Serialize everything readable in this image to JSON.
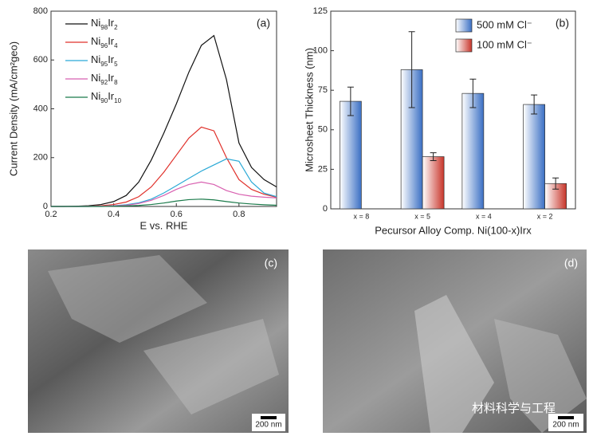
{
  "chart_data": [
    {
      "type": "line",
      "label": "(a)",
      "xlabel": "E vs. RHE",
      "ylabel": "Current Density (mA/cm²geo)",
      "x": [
        0.2,
        0.24,
        0.28,
        0.32,
        0.36,
        0.4,
        0.44,
        0.48,
        0.52,
        0.56,
        0.6,
        0.64,
        0.68,
        0.72,
        0.76,
        0.8,
        0.84,
        0.88,
        0.92
      ],
      "xlim": [
        0.2,
        0.92
      ],
      "xticks": [
        0.2,
        0.4,
        0.6,
        0.8
      ],
      "ylim": [
        0,
        800
      ],
      "yticks": [
        0,
        200,
        400,
        600,
        800
      ],
      "series": [
        {
          "name": "Ni98Ir2",
          "color": "#111111",
          "values": [
            0,
            0,
            1,
            3,
            8,
            20,
            45,
            100,
            190,
            300,
            420,
            550,
            660,
            700,
            520,
            260,
            160,
            110,
            80
          ]
        },
        {
          "name": "Ni96Ir4",
          "color": "#e0302a",
          "values": [
            0,
            0,
            0,
            1,
            3,
            8,
            18,
            40,
            80,
            140,
            210,
            280,
            325,
            310,
            200,
            110,
            70,
            50,
            38
          ]
        },
        {
          "name": "Ni95Ir5",
          "color": "#2aa9d6",
          "values": [
            0,
            0,
            0,
            0,
            1,
            3,
            7,
            15,
            30,
            55,
            85,
            115,
            145,
            170,
            195,
            185,
            100,
            55,
            40
          ]
        },
        {
          "name": "Ni92Ir8",
          "color": "#d860b0",
          "values": [
            0,
            0,
            0,
            0,
            1,
            2,
            5,
            12,
            25,
            45,
            70,
            90,
            100,
            90,
            65,
            50,
            42,
            38,
            35
          ]
        },
        {
          "name": "Ni90Ir10",
          "color": "#1a7a4a",
          "values": [
            0,
            0,
            0,
            0,
            0,
            1,
            2,
            4,
            8,
            14,
            22,
            28,
            30,
            27,
            20,
            14,
            10,
            7,
            5
          ]
        }
      ]
    },
    {
      "type": "bar",
      "label": "(b)",
      "xlabel": "Pecursor Alloy Comp. Ni(100-x)Irx",
      "ylabel": "Microsheet Thickness (nm)",
      "categories": [
        "x = 8",
        "x = 5",
        "x = 4",
        "x = 2"
      ],
      "ylim": [
        0,
        125
      ],
      "yticks": [
        0,
        25,
        50,
        75,
        100,
        125
      ],
      "series": [
        {
          "name": "500 mM Cl⁻",
          "color": "#3a6fc4",
          "values": [
            68,
            88,
            73,
            66
          ],
          "errors": [
            9,
            24,
            9,
            6
          ]
        },
        {
          "name": "100 mM Cl⁻",
          "color": "#c8352a",
          "values": [
            null,
            33,
            null,
            16
          ],
          "errors": [
            null,
            2.5,
            null,
            3.5
          ]
        }
      ]
    }
  ],
  "images": [
    {
      "label": "(c)",
      "scale_bar": "200 nm"
    },
    {
      "label": "(d)",
      "scale_bar": "200 nm",
      "watermark": "材料科学与工程"
    }
  ]
}
